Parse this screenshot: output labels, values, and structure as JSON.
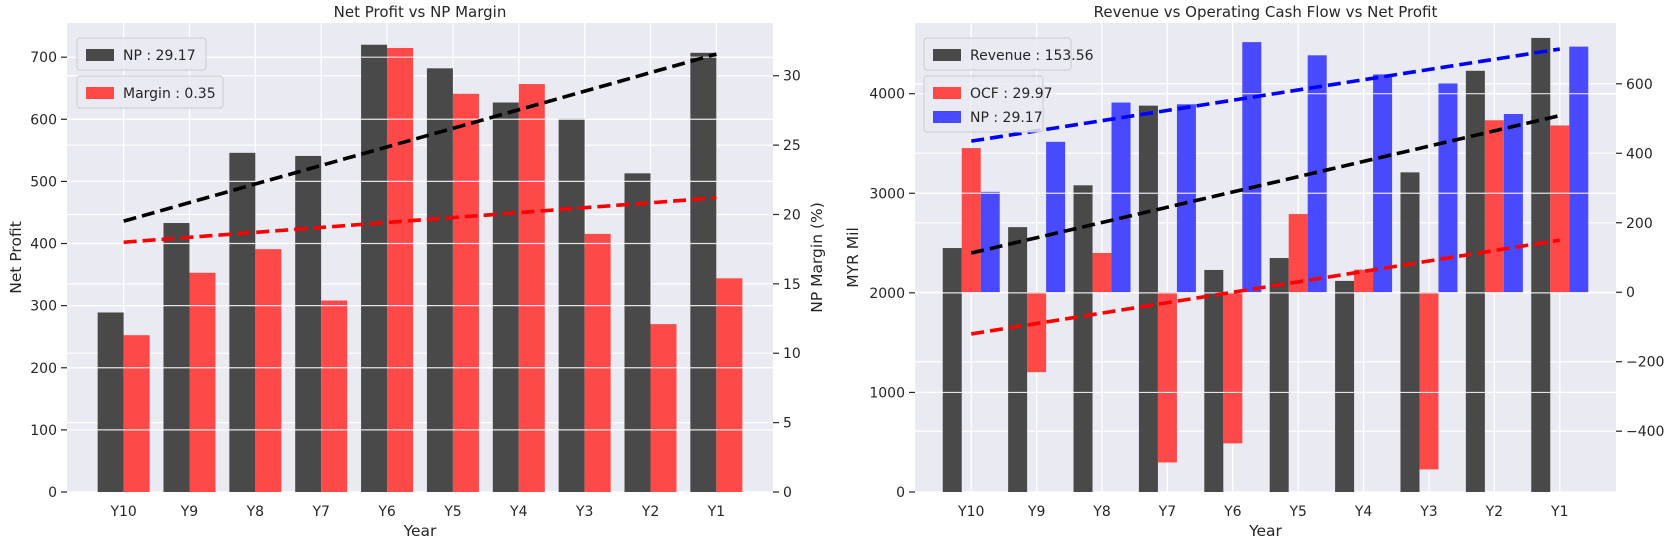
{
  "colors": {
    "background": "#eaeaf2",
    "grid": "#ffffff",
    "black_bar": "#3c3c3c",
    "red_bar": "#ff3c3c",
    "blue_bar": "#3c3cff",
    "trend_black": "#000000",
    "trend_red": "#ff0000",
    "trend_blue": "#0000ff"
  },
  "chart_data": [
    {
      "type": "bar",
      "title": "Net Profit vs NP Margin",
      "xlabel": "Year",
      "ylabel": "Net Profit",
      "ylabel_right": "NP Margin (%)",
      "categories": [
        "Y10",
        "Y9",
        "Y8",
        "Y7",
        "Y6",
        "Y5",
        "Y4",
        "Y3",
        "Y2",
        "Y1"
      ],
      "ylim": [
        0,
        755
      ],
      "ylim_right": [
        0,
        33.8
      ],
      "yticks": [
        0,
        100,
        200,
        300,
        400,
        500,
        600,
        700
      ],
      "yticks_right": [
        0,
        5,
        10,
        15,
        20,
        25,
        30
      ],
      "legend_position": "top-left",
      "grid": true,
      "series": [
        {
          "name": "NP : 29.17",
          "axis": "left",
          "color_key": "black_bar",
          "values": [
            289,
            433,
            546,
            541,
            720,
            682,
            627,
            601,
            513,
            707
          ]
        },
        {
          "name": "Margin : 0.35",
          "axis": "right",
          "color_key": "red_bar",
          "values": [
            11.3,
            15.8,
            17.5,
            13.8,
            32.0,
            28.7,
            29.4,
            18.6,
            12.1,
            15.4
          ]
        }
      ],
      "trendlines": [
        {
          "axis": "left",
          "color_key": "trend_black",
          "from": [
            0,
            436
          ],
          "to": [
            9,
            705
          ]
        },
        {
          "axis": "right",
          "color_key": "trend_red",
          "from": [
            0,
            18.0
          ],
          "to": [
            9,
            21.2
          ]
        }
      ]
    },
    {
      "type": "bar",
      "title": "Revenue vs Operating Cash Flow vs Net Profit",
      "xlabel": "Year",
      "ylabel": "MYR Mil",
      "categories": [
        "Y10",
        "Y9",
        "Y8",
        "Y7",
        "Y6",
        "Y5",
        "Y4",
        "Y3",
        "Y2",
        "Y1"
      ],
      "ylim": [
        0,
        4710
      ],
      "ylim_right": [
        -575,
        775
      ],
      "yticks": [
        0,
        1000,
        2000,
        3000,
        4000
      ],
      "yticks_right": [
        -400,
        -200,
        0,
        200,
        400,
        600
      ],
      "yticks_right_labels": [
        "−400",
        "−200",
        "0",
        "200",
        "400",
        "600"
      ],
      "legend_position": "top-left",
      "grid": true,
      "series": [
        {
          "name": "Revenue : 153.56",
          "axis": "left",
          "color_key": "black_bar",
          "values": [
            2450,
            2660,
            3080,
            3880,
            2230,
            2350,
            2120,
            3210,
            4230,
            4560
          ]
        },
        {
          "name": "OCF : 29.97",
          "axis": "right",
          "color_key": "red_bar",
          "values": [
            415,
            -230,
            113,
            -490,
            -435,
            225,
            65,
            -510,
            495,
            480
          ]
        },
        {
          "name": "NP : 29.17",
          "axis": "right",
          "color_key": "blue_bar",
          "values": [
            289,
            433,
            546,
            541,
            720,
            682,
            627,
            601,
            513,
            707
          ]
        }
      ],
      "trendlines": [
        {
          "axis": "left",
          "color_key": "trend_black",
          "from": [
            0,
            2400
          ],
          "to": [
            9,
            3780
          ]
        },
        {
          "axis": "right",
          "color_key": "trend_red",
          "from": [
            0,
            -120
          ],
          "to": [
            9,
            150
          ]
        },
        {
          "axis": "right",
          "color_key": "trend_blue",
          "from": [
            0,
            435
          ],
          "to": [
            9,
            700
          ]
        }
      ]
    }
  ]
}
